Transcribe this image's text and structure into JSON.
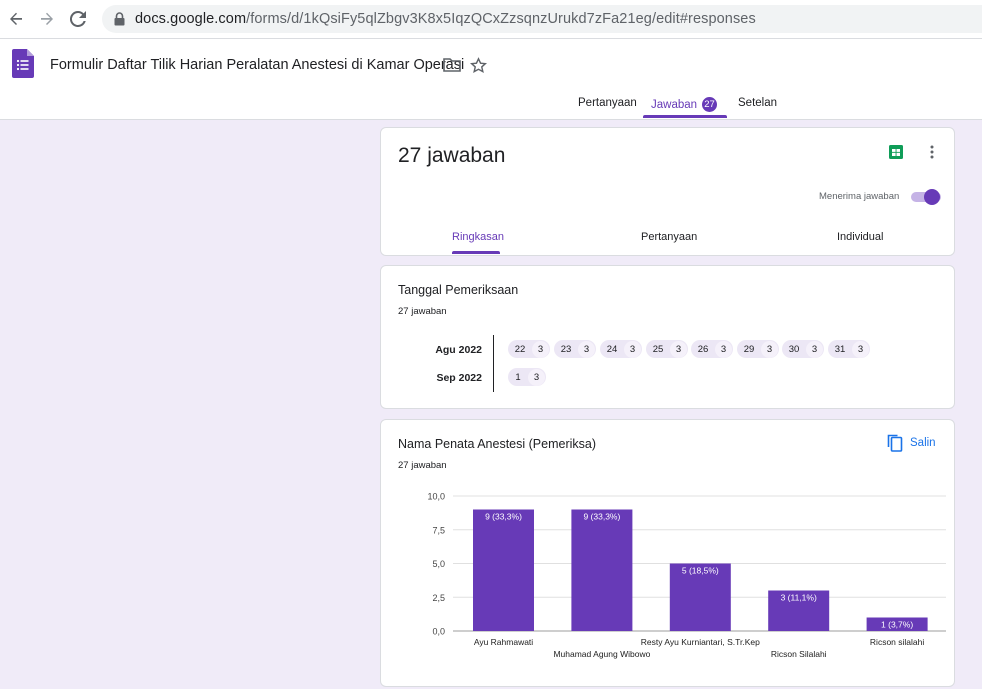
{
  "browser": {
    "url_host": "docs.google.com",
    "url_path": "/forms/d/1kQsiFy5qlZbgv3K8x5IqzQCxZzsqnzUrukd7zFa21eg/edit#responses"
  },
  "form": {
    "title": "Formulir Daftar Tilik Harian Peralatan Anestesi di Kamar Operasi"
  },
  "top_tabs": {
    "questions": "Pertanyaan",
    "responses": "Jawaban",
    "responses_badge": "27",
    "settings": "Setelan"
  },
  "summary": {
    "count_title": "27 jawaban",
    "accepting_label": "Menerima jawaban",
    "tabs": [
      "Ringkasan",
      "Pertanyaan",
      "Individual"
    ]
  },
  "date_question": {
    "title": "Tanggal Pemeriksaan",
    "count": "27 jawaban",
    "months": [
      {
        "label": "Agu 2022",
        "days": [
          {
            "day": "22",
            "count": "3"
          },
          {
            "day": "23",
            "count": "3"
          },
          {
            "day": "24",
            "count": "3"
          },
          {
            "day": "25",
            "count": "3"
          },
          {
            "day": "26",
            "count": "3"
          },
          {
            "day": "29",
            "count": "3"
          },
          {
            "day": "30",
            "count": "3"
          },
          {
            "day": "31",
            "count": "3"
          }
        ]
      },
      {
        "label": "Sep 2022",
        "days": [
          {
            "day": "1",
            "count": "3"
          }
        ]
      }
    ]
  },
  "name_question": {
    "title": "Nama Penata Anestesi (Pemeriksa)",
    "count": "27 jawaban",
    "copy_label": "Salin"
  },
  "colors": {
    "accent": "#673ab7",
    "background": "#f0ebf8",
    "sheets_green": "#0f9d58",
    "link_blue": "#1a73e8"
  },
  "chart_data": {
    "type": "bar",
    "categories": [
      "Ayu Rahmawati",
      "Muhamad Agung Wibowo",
      "Resty Ayu Kurniantari, S.Tr.Kep",
      "Ricson Silalahi",
      "Ricson silalahi"
    ],
    "values": [
      9,
      9,
      5,
      3,
      1
    ],
    "data_labels": [
      "9 (33,3%)",
      "9 (33,3%)",
      "5 (18,5%)",
      "3 (11,1%)",
      "1 (3,7%)"
    ],
    "ylim": [
      0,
      10
    ],
    "yticks": [
      "0,0",
      "2,5",
      "5,0",
      "7,5",
      "10,0"
    ],
    "ytick_values": [
      0,
      2.5,
      5,
      7.5,
      10
    ],
    "grid": true,
    "color": "#673ab7"
  }
}
